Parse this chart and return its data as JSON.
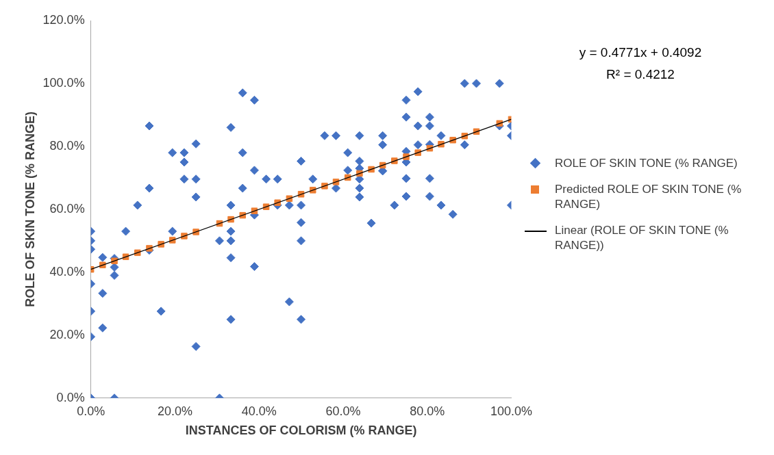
{
  "chart_data": {
    "type": "scatter",
    "xlabel": "INSTANCES OF COLORISM (% RANGE)",
    "ylabel": "ROLE OF SKIN TONE (% RANGE)",
    "xlim": [
      0,
      100
    ],
    "ylim": [
      0,
      120
    ],
    "xticks": [
      {
        "value": 0,
        "label": "0.0%"
      },
      {
        "value": 20,
        "label": "20.0%"
      },
      {
        "value": 40,
        "label": "40.0%"
      },
      {
        "value": 60,
        "label": "60.0%"
      },
      {
        "value": 80,
        "label": "80.0%"
      },
      {
        "value": 100,
        "label": "100.0%"
      }
    ],
    "yticks": [
      {
        "value": 0,
        "label": "0.0%"
      },
      {
        "value": 20,
        "label": "20.0%"
      },
      {
        "value": 40,
        "label": "40.0%"
      },
      {
        "value": 60,
        "label": "60.0%"
      },
      {
        "value": 80,
        "label": "80.0%"
      },
      {
        "value": 100,
        "label": "100.0%"
      },
      {
        "value": 120,
        "label": "120.0%"
      }
    ],
    "grid": false,
    "legend": "right",
    "annotations": [
      "y = 0.4771x + 0.4092",
      "R² = 0.4212"
    ],
    "series": [
      {
        "name": "ROLE OF SKIN TONE (% RANGE)",
        "marker": "diamond",
        "color": "#4472c4",
        "x": [
          0,
          0,
          0,
          0,
          0,
          0,
          0,
          2.8,
          2.8,
          2.8,
          5.6,
          5.6,
          5.6,
          5.6,
          8.3,
          11.1,
          13.9,
          13.9,
          13.9,
          16.7,
          19.4,
          19.4,
          22.2,
          22.2,
          22.2,
          25,
          25,
          25,
          25,
          30.6,
          30.6,
          33.3,
          33.3,
          33.3,
          33.3,
          33.3,
          33.3,
          36.1,
          36.1,
          36.1,
          38.9,
          38.9,
          38.9,
          38.9,
          41.7,
          44.4,
          44.4,
          47.2,
          47.2,
          50,
          50,
          50,
          50,
          50,
          52.8,
          55.6,
          58.3,
          58.3,
          61.1,
          61.1,
          63.9,
          63.9,
          63.9,
          63.9,
          63.9,
          63.9,
          66.7,
          69.4,
          69.4,
          69.4,
          69.4,
          72.2,
          75,
          75,
          75,
          75,
          75,
          75,
          77.8,
          77.8,
          77.8,
          80.6,
          80.6,
          80.6,
          80.6,
          80.6,
          83.3,
          83.3,
          86.1,
          88.9,
          88.9,
          91.7,
          97.2,
          97.2,
          100,
          100,
          100
        ],
        "values": [
          0,
          19.5,
          27.6,
          36.3,
          47.3,
          50,
          53,
          22.3,
          33.3,
          44.7,
          0,
          39,
          41.6,
          44.4,
          53,
          61.3,
          86.5,
          66.7,
          47,
          27.6,
          78,
          53,
          78,
          75,
          69.6,
          80.8,
          69.6,
          63.9,
          16.4,
          50,
          0,
          86,
          61.3,
          53,
          50,
          44.6,
          25,
          97,
          78,
          66.7,
          94.7,
          72.4,
          58.2,
          41.8,
          69.6,
          69.6,
          61.3,
          61.3,
          30.6,
          75.3,
          61.3,
          55.8,
          50,
          25,
          69.6,
          83.4,
          83.4,
          66.7,
          78,
          72.4,
          83.4,
          75.3,
          69.6,
          66.7,
          63.9,
          73,
          55.6,
          83.4,
          80.5,
          72.2,
          72.2,
          61.3,
          94.7,
          89.3,
          78.4,
          75,
          69.8,
          64.1,
          97.4,
          86.5,
          80.5,
          89.3,
          86.5,
          69.8,
          64.1,
          80.6,
          83.4,
          61.3,
          58.4,
          100,
          80.5,
          100,
          100,
          86.5,
          86.5,
          83.4,
          61.3
        ]
      },
      {
        "name": "Predicted ROLE OF SKIN TONE (% RANGE)",
        "marker": "square",
        "color": "#ed7d31",
        "x": [
          0,
          2.8,
          5.6,
          8.3,
          11.1,
          13.9,
          16.7,
          19.4,
          22.2,
          25,
          30.6,
          33.3,
          36.1,
          38.9,
          41.7,
          44.4,
          47.2,
          50,
          52.8,
          55.6,
          58.3,
          61.1,
          63.9,
          66.7,
          69.4,
          72.2,
          75,
          77.8,
          80.6,
          83.3,
          86.1,
          88.9,
          91.7,
          97.2,
          100
        ],
        "values": [
          40.9,
          42.3,
          43.6,
          44.9,
          46.2,
          47.6,
          48.9,
          50.2,
          51.5,
          52.8,
          55.5,
          56.8,
          58.1,
          59.5,
          60.8,
          62.1,
          63.4,
          64.8,
          66.1,
          67.4,
          68.7,
          70.1,
          71.4,
          72.7,
          74.0,
          75.4,
          76.7,
          78.0,
          79.4,
          80.7,
          82.0,
          83.3,
          84.7,
          87.3,
          88.6
        ]
      },
      {
        "name": "Linear (ROLE OF SKIN TONE (% RANGE))",
        "type": "line",
        "marker": "none",
        "line_style": "solid",
        "color": "#000000",
        "x": [
          0,
          100
        ],
        "values": [
          40.9,
          88.6
        ]
      }
    ]
  }
}
